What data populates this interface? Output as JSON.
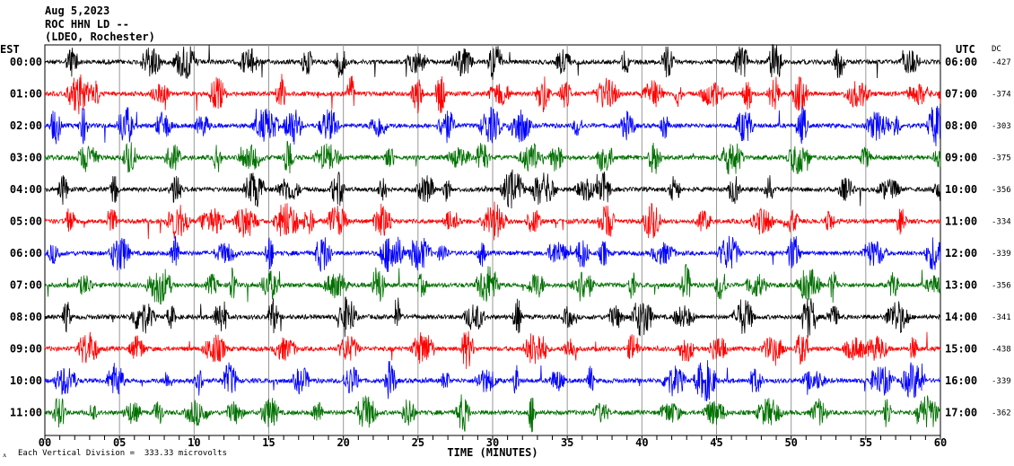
{
  "header": {
    "date": "Aug 5,2023",
    "station": "ROC HHN LD --",
    "network": "(LDEO, Rochester)"
  },
  "footer": {
    "scale_note": "Each Vertical Division =  333.33 microvolts",
    "logo_mark": "ᴧ"
  },
  "chart_data": {
    "type": "line",
    "title": "Aug 5,2023 ROC HHN LD -- (LDEO, Rochester)",
    "xlabel": "TIME (MINUTES)",
    "xlim": [
      0,
      60
    ],
    "x_ticks": [
      "00",
      "05",
      "10",
      "15",
      "20",
      "25",
      "30",
      "35",
      "40",
      "45",
      "50",
      "55",
      "60"
    ],
    "left_axis_title": "EST",
    "right_axis_title": "UTC",
    "dc_title": "DC",
    "grid": "vertical lines every 5 minutes",
    "rows": [
      {
        "est": "00:00",
        "utc": "06:00",
        "dc": "-427",
        "color": "#000000"
      },
      {
        "est": "01:00",
        "utc": "07:00",
        "dc": "-374",
        "color": "#ff0000"
      },
      {
        "est": "02:00",
        "utc": "08:00",
        "dc": "-303",
        "color": "#0000ff"
      },
      {
        "est": "03:00",
        "utc": "09:00",
        "dc": "-375",
        "color": "#007000"
      },
      {
        "est": "04:00",
        "utc": "10:00",
        "dc": "-356",
        "color": "#000000"
      },
      {
        "est": "05:00",
        "utc": "11:00",
        "dc": "-334",
        "color": "#ff0000"
      },
      {
        "est": "06:00",
        "utc": "12:00",
        "dc": "-339",
        "color": "#0000ff"
      },
      {
        "est": "07:00",
        "utc": "13:00",
        "dc": "-356",
        "color": "#007000"
      },
      {
        "est": "08:00",
        "utc": "14:00",
        "dc": "-341",
        "color": "#000000"
      },
      {
        "est": "09:00",
        "utc": "15:00",
        "dc": "-438",
        "color": "#ff0000"
      },
      {
        "est": "10:00",
        "utc": "16:00",
        "dc": "-339",
        "color": "#0000ff"
      },
      {
        "est": "11:00",
        "utc": "17:00",
        "dc": "-362",
        "color": "#007000"
      }
    ]
  }
}
